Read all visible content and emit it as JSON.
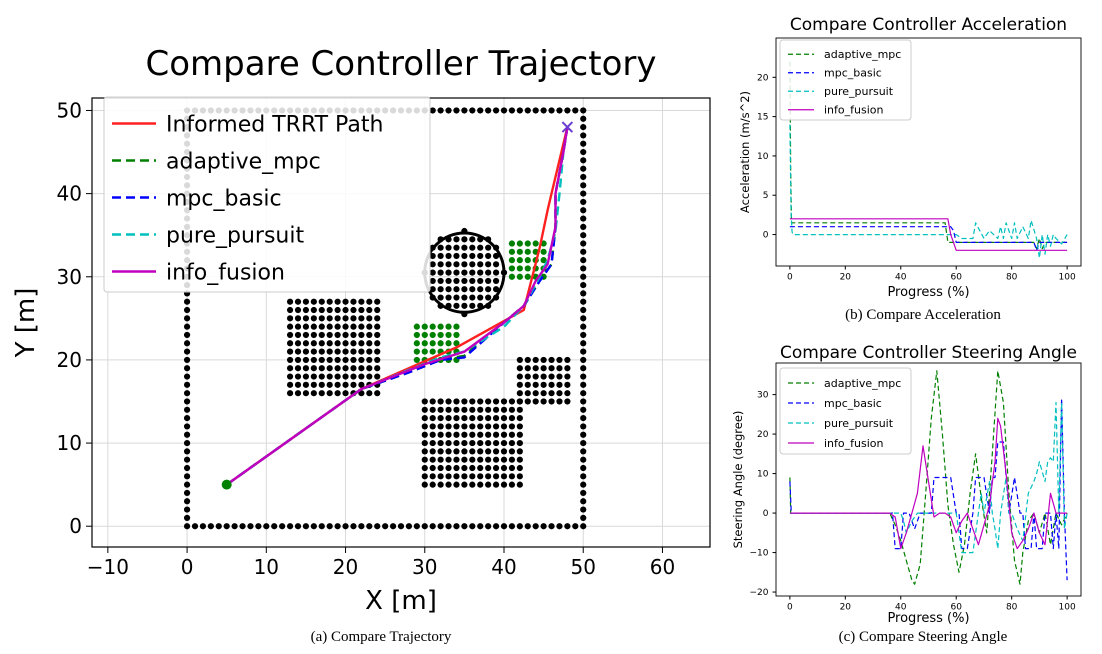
{
  "figure": {
    "captions": {
      "a": "(a) Compare Trajectory",
      "b": "(b) Compare Acceleration",
      "c": "(c) Compare Steering Angle"
    }
  },
  "colors": {
    "path": "#ff2020",
    "adaptive_mpc": "#008000",
    "mpc_basic": "#0000ff",
    "pure_pursuit": "#00bfbf",
    "info_fusion": "#bf00bf",
    "obstacle": "#000000",
    "green_obstacle": "#008000",
    "grid": "#d9d9d9"
  },
  "chart_data": [
    {
      "id": "trajectory",
      "type": "line",
      "title": "Compare Controller Trajectory",
      "xlabel": "X [m]",
      "ylabel": "Y [m]",
      "xlim": [
        -12,
        66
      ],
      "ylim": [
        -2.5,
        51.5
      ],
      "xticks": [
        -10,
        0,
        10,
        20,
        30,
        40,
        50,
        60
      ],
      "yticks": [
        0,
        10,
        20,
        30,
        40,
        50
      ],
      "xtick_labels": [
        "−10",
        "0",
        "10",
        "20",
        "30",
        "40",
        "50",
        "60"
      ],
      "ytick_labels": [
        "0",
        "10",
        "20",
        "30",
        "40",
        "50"
      ],
      "grid": true,
      "legend_position": "top-left",
      "start": [
        5,
        5
      ],
      "goal": [
        48,
        48
      ],
      "boundary": {
        "x": [
          0,
          50
        ],
        "y": [
          0,
          50
        ]
      },
      "black_obstacles": [
        {
          "shape": "square",
          "x": [
            13,
            24
          ],
          "y": [
            16,
            27
          ]
        },
        {
          "shape": "square",
          "x": [
            30,
            42
          ],
          "y": [
            5,
            15
          ]
        },
        {
          "shape": "square",
          "x": [
            42,
            48
          ],
          "y": [
            15,
            20
          ]
        },
        {
          "shape": "circle",
          "cx": 35,
          "cy": 30.5,
          "r": 5
        }
      ],
      "green_obstacles": [
        {
          "x": [
            29,
            34
          ],
          "y": [
            20,
            24
          ]
        },
        {
          "x": [
            41,
            45
          ],
          "y": [
            30,
            34
          ]
        }
      ],
      "series": [
        {
          "name": "Informed TRRT Path",
          "key": "path",
          "style": "solid",
          "x": [
            5,
            22,
            34,
            42.5,
            44.5,
            45.5,
            46,
            48
          ],
          "y": [
            5,
            16.5,
            21.5,
            26,
            33.5,
            38,
            40,
            48
          ]
        },
        {
          "name": "adaptive_mpc",
          "key": "adaptive_mpc",
          "style": "dashed",
          "x": [
            5,
            22,
            28,
            32,
            35,
            40,
            42.5,
            44.5,
            46,
            46.5,
            46.5,
            47.5,
            48
          ],
          "y": [
            5,
            16.5,
            18.5,
            20,
            20.5,
            24.5,
            26.5,
            29.5,
            31.5,
            36,
            40,
            45,
            48
          ]
        },
        {
          "name": "mpc_basic",
          "key": "mpc_basic",
          "style": "dashed",
          "x": [
            5,
            22,
            28,
            32,
            35,
            40,
            42.5,
            44.5,
            46,
            46.5,
            46.5,
            47.5,
            48
          ],
          "y": [
            5,
            16.5,
            18.5,
            20,
            20.3,
            24.5,
            26.5,
            29.5,
            31.5,
            36,
            40,
            45,
            48
          ]
        },
        {
          "name": "pure_pursuit",
          "key": "pure_pursuit",
          "style": "dashed",
          "x": [
            5,
            22,
            28,
            32,
            35,
            40,
            42.5,
            44.5,
            45.5,
            46.5,
            47,
            47.5,
            48
          ],
          "y": [
            5,
            16.5,
            18.8,
            20.3,
            21,
            24,
            26.5,
            30,
            32,
            35.5,
            40,
            45,
            48
          ]
        },
        {
          "name": "info_fusion",
          "key": "info_fusion",
          "style": "solid",
          "x": [
            5,
            22,
            30,
            35,
            40,
            42.5,
            44,
            45.5,
            46.5,
            46.5,
            47.5,
            48
          ],
          "y": [
            5,
            16.5,
            19.5,
            21,
            24.5,
            26.5,
            29.5,
            31.5,
            36,
            40,
            45,
            48
          ]
        }
      ]
    },
    {
      "id": "acceleration",
      "type": "line",
      "title": "Compare Controller Acceleration",
      "xlabel": "Progress (%)",
      "ylabel": "Acceleration (m/s^2)",
      "xlim": [
        -5,
        105
      ],
      "ylim": [
        -4,
        25
      ],
      "xticks": [
        0,
        20,
        40,
        60,
        80,
        100
      ],
      "yticks": [
        0,
        5,
        10,
        15,
        20
      ],
      "grid": false,
      "legend_position": "top-left",
      "series": [
        {
          "name": "adaptive_mpc",
          "key": "adaptive_mpc",
          "style": "dashed",
          "x": [
            0,
            0.3,
            0.6,
            1,
            56,
            57,
            60,
            65,
            70,
            75,
            80,
            85,
            88,
            89,
            90,
            91,
            92,
            95,
            100
          ],
          "y": [
            22,
            8,
            1.5,
            1.5,
            1.5,
            -1,
            -1,
            -1,
            -1,
            -1,
            -1,
            -1,
            -1,
            -1.8,
            -0.5,
            -1.8,
            -1,
            -1,
            -1
          ]
        },
        {
          "name": "mpc_basic",
          "key": "mpc_basic",
          "style": "dashed",
          "x": [
            0,
            0.5,
            1,
            56,
            57,
            58,
            59,
            60,
            62,
            70,
            80,
            88,
            89,
            90,
            92,
            100
          ],
          "y": [
            1,
            1,
            1,
            1,
            1,
            1,
            0.5,
            -1,
            -1,
            -1,
            -1,
            -1,
            -2,
            -1,
            -1,
            -1
          ]
        },
        {
          "name": "pure_pursuit",
          "key": "pure_pursuit",
          "style": "dashed",
          "x": [
            0,
            0.4,
            0.8,
            1.2,
            56,
            57,
            60,
            62,
            66,
            67,
            70,
            72,
            75,
            76,
            77,
            78,
            80,
            81,
            82,
            84,
            86,
            87,
            89,
            90,
            91,
            92,
            93,
            94,
            95,
            96,
            98,
            100
          ],
          "y": [
            14,
            3,
            0.3,
            0,
            0,
            0,
            0,
            -0.5,
            -0.5,
            1.5,
            -0.5,
            0.5,
            -0.5,
            1,
            -0.5,
            1.5,
            -0.5,
            1.5,
            -0.5,
            1,
            -0.5,
            1.8,
            -0.5,
            -3,
            0,
            -2.5,
            0,
            -1.5,
            0,
            -0.5,
            -1.2,
            0
          ]
        },
        {
          "name": "info_fusion",
          "key": "info_fusion",
          "style": "solid",
          "x": [
            0,
            57,
            58,
            59,
            60,
            100
          ],
          "y": [
            2,
            2,
            0,
            -1,
            -2,
            -2
          ]
        }
      ]
    },
    {
      "id": "steering",
      "type": "line",
      "title": "Compare Controller Steering Angle",
      "xlabel": "Progress (%)",
      "ylabel": "Steering Angle (degree)",
      "xlim": [
        -5,
        105
      ],
      "ylim": [
        -21,
        38
      ],
      "xticks": [
        0,
        20,
        40,
        60,
        80,
        100
      ],
      "yticks": [
        -20,
        -10,
        0,
        10,
        20,
        30
      ],
      "ytick_labels": [
        "−20",
        "−10",
        "0",
        "10",
        "20",
        "30"
      ],
      "grid": false,
      "legend_position": "top-left",
      "series": [
        {
          "name": "adaptive_mpc",
          "key": "adaptive_mpc",
          "style": "dashed",
          "x": [
            0,
            0.3,
            1,
            36,
            38,
            40,
            42,
            44,
            45,
            47,
            49,
            51,
            53,
            55,
            57,
            59,
            61,
            63,
            65,
            67,
            69,
            71,
            73,
            75,
            77,
            79,
            81,
            83,
            84,
            86,
            88,
            90,
            92,
            94,
            96,
            98,
            100
          ],
          "y": [
            9,
            0,
            0,
            0,
            -3,
            -7,
            -12,
            -17,
            -18,
            -13,
            5,
            24,
            36,
            20,
            2,
            -8,
            -15,
            -8,
            5,
            15,
            4,
            -5,
            15,
            36,
            28,
            5,
            -12,
            -18,
            -10,
            -2,
            0,
            -5,
            0,
            -8,
            0,
            -3,
            0
          ]
        },
        {
          "name": "mpc_basic",
          "key": "mpc_basic",
          "style": "dashed",
          "x": [
            0,
            0.5,
            1,
            37,
            38,
            40,
            41,
            43,
            45,
            47,
            51,
            52,
            53,
            58,
            60,
            61,
            62,
            64,
            66,
            67,
            70,
            72,
            73,
            74,
            75,
            77,
            79,
            81,
            83,
            84,
            85,
            87,
            88,
            89,
            91,
            92,
            94,
            95,
            96,
            97,
            98,
            99,
            100
          ],
          "y": [
            8,
            0,
            0,
            0,
            -9,
            -9,
            0,
            0,
            -4,
            0,
            0,
            9,
            9,
            9,
            0,
            0,
            -9,
            -9,
            0,
            9,
            9,
            0,
            9,
            9,
            18,
            18,
            0,
            9,
            0,
            0,
            -9,
            -9,
            0,
            -9,
            -9,
            0,
            0,
            -9,
            0,
            -9,
            29,
            0,
            -17
          ]
        },
        {
          "name": "pure_pursuit",
          "key": "pure_pursuit",
          "style": "dashed",
          "x": [
            0,
            1,
            20,
            40,
            41,
            42,
            44,
            46,
            50,
            55,
            60,
            62,
            64,
            66,
            68,
            69,
            70,
            72,
            73,
            74,
            75,
            76,
            78,
            79,
            80,
            82,
            84,
            86,
            88,
            89,
            90,
            92,
            93,
            94,
            95,
            96,
            97,
            98,
            99,
            100
          ],
          "y": [
            0,
            0,
            0,
            0,
            -2,
            -5,
            -2,
            0,
            0,
            0,
            0,
            -10,
            -10,
            -10,
            0,
            5,
            0,
            8,
            0,
            -4,
            -9,
            0,
            9,
            0,
            0,
            -4,
            -7,
            5,
            8,
            10,
            13,
            8,
            13,
            14,
            13,
            28,
            0,
            28,
            -4,
            0
          ]
        },
        {
          "name": "info_fusion",
          "key": "info_fusion",
          "style": "solid",
          "x": [
            0,
            36,
            38,
            40,
            42,
            44,
            46,
            48,
            50,
            52,
            54,
            56,
            58,
            60,
            62,
            64,
            66,
            68,
            70,
            72,
            74,
            75,
            76,
            78,
            80,
            82,
            84,
            86,
            88,
            90,
            92,
            94,
            96,
            98,
            100
          ],
          "y": [
            0,
            0,
            -1,
            -9,
            -5,
            0,
            5,
            17,
            8,
            -1,
            0,
            0,
            -1,
            -5,
            -2,
            0,
            -4,
            -8,
            -3,
            2,
            13,
            24,
            22,
            10,
            -5,
            -9,
            -7,
            -4,
            0,
            -5,
            -8,
            5,
            0,
            0,
            0
          ]
        }
      ]
    }
  ]
}
